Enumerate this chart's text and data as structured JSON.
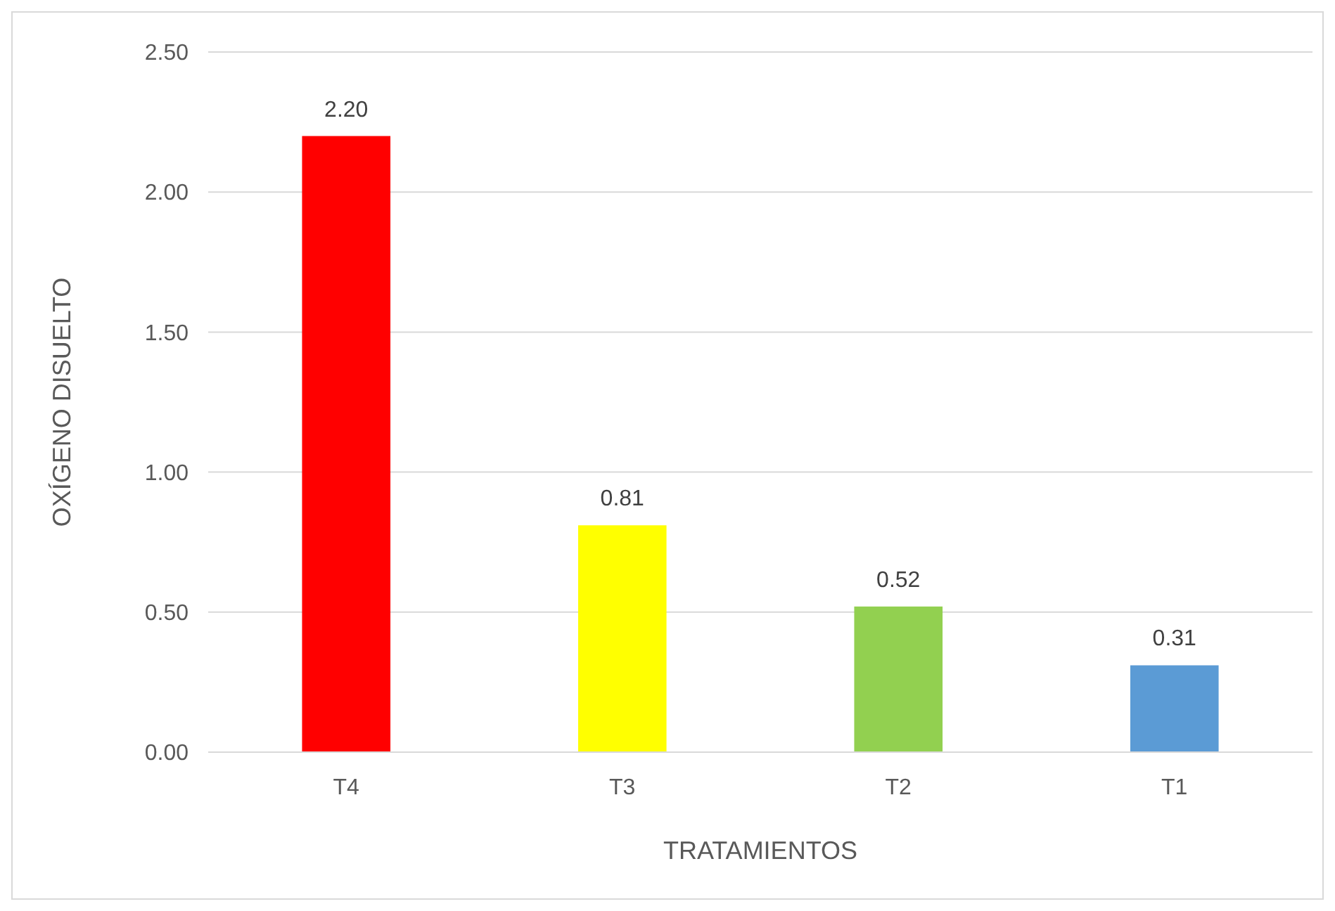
{
  "chart_data": {
    "type": "bar",
    "xlabel": "TRATAMIENTOS",
    "ylabel": "OXÍGENO DISUELTO",
    "categories": [
      "T4",
      "T3",
      "T2",
      "T1"
    ],
    "values": [
      2.2,
      0.81,
      0.52,
      0.31
    ],
    "colors": [
      "#ff0000",
      "#ffff00",
      "#92d050",
      "#5b9bd5"
    ],
    "value_labels": [
      "2.20",
      "0.81",
      "0.52",
      "0.31"
    ],
    "ylim": [
      0,
      2.5
    ],
    "yticks": [
      {
        "value": 0,
        "label": "0.00"
      },
      {
        "value": 0.5,
        "label": "0.50"
      },
      {
        "value": 1,
        "label": "1.00"
      },
      {
        "value": 1.5,
        "label": "1.50"
      },
      {
        "value": 2,
        "label": "2.00"
      },
      {
        "value": 2.5,
        "label": "2.50"
      }
    ],
    "grid": "y"
  }
}
